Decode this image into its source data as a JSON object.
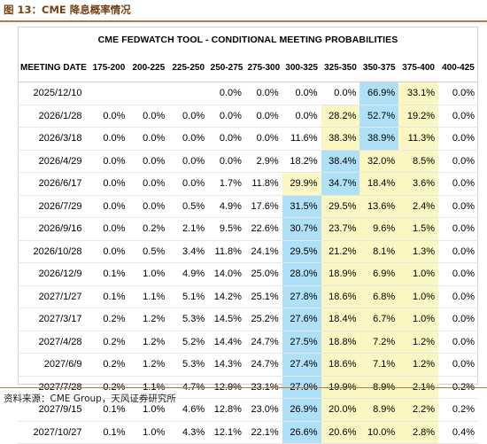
{
  "figure_title": "图 13：CME 降息概率情况",
  "table_title": "CME FEDWATCH TOOL - CONDITIONAL MEETING PROBABILITIES",
  "columns": [
    "MEETING DATE",
    "175-200",
    "200-225",
    "225-250",
    "250-275",
    "275-300",
    "300-325",
    "325-350",
    "350-375",
    "375-400",
    "400-425"
  ],
  "rows": [
    {
      "date": "2025/12/10",
      "cells": [
        "",
        "",
        "0.0%",
        "0.0%",
        "0.0%",
        "0.0%",
        "66.9%",
        "33.1%",
        "0.0%"
      ],
      "pre": [
        ""
      ]
    },
    {
      "date": "2026/1/28",
      "cells": [
        "0.0%",
        "0.0%",
        "0.0%",
        "0.0%",
        "0.0%",
        "0.0%",
        "28.2%",
        "52.7%",
        "19.2%",
        "0.0%"
      ]
    },
    {
      "date": "2026/3/18",
      "cells": [
        "0.0%",
        "0.0%",
        "0.0%",
        "0.0%",
        "0.0%",
        "11.6%",
        "38.3%",
        "38.9%",
        "11.3%",
        "0.0%"
      ]
    },
    {
      "date": "2026/4/29",
      "cells": [
        "0.0%",
        "0.0%",
        "0.0%",
        "0.0%",
        "2.9%",
        "18.2%",
        "38.4%",
        "32.0%",
        "8.5%",
        "0.0%"
      ]
    },
    {
      "date": "2026/6/17",
      "cells": [
        "0.0%",
        "0.0%",
        "0.0%",
        "1.7%",
        "11.8%",
        "29.9%",
        "34.7%",
        "18.4%",
        "3.6%",
        "0.0%"
      ]
    },
    {
      "date": "2026/7/29",
      "cells": [
        "0.0%",
        "0.0%",
        "0.5%",
        "4.9%",
        "17.6%",
        "31.5%",
        "29.5%",
        "13.6%",
        "2.4%",
        "0.0%"
      ]
    },
    {
      "date": "2026/9/16",
      "cells": [
        "0.0%",
        "0.2%",
        "2.1%",
        "9.5%",
        "22.6%",
        "30.7%",
        "23.7%",
        "9.6%",
        "1.5%",
        "0.0%"
      ]
    },
    {
      "date": "2026/10/28",
      "cells": [
        "0.0%",
        "0.5%",
        "3.4%",
        "11.8%",
        "24.1%",
        "29.5%",
        "21.2%",
        "8.1%",
        "1.3%",
        "0.0%"
      ]
    },
    {
      "date": "2026/12/9",
      "cells": [
        "0.1%",
        "1.0%",
        "4.9%",
        "14.0%",
        "25.0%",
        "28.0%",
        "18.9%",
        "6.9%",
        "1.0%",
        "0.0%"
      ]
    },
    {
      "date": "2027/1/27",
      "cells": [
        "0.1%",
        "1.1%",
        "5.1%",
        "14.2%",
        "25.1%",
        "27.8%",
        "18.6%",
        "6.8%",
        "1.0%",
        "0.0%"
      ]
    },
    {
      "date": "2027/3/17",
      "cells": [
        "0.2%",
        "1.2%",
        "5.3%",
        "14.5%",
        "25.2%",
        "27.6%",
        "18.4%",
        "6.7%",
        "1.0%",
        "0.0%"
      ]
    },
    {
      "date": "2027/4/28",
      "cells": [
        "0.2%",
        "1.2%",
        "5.2%",
        "14.4%",
        "24.7%",
        "27.5%",
        "18.8%",
        "7.2%",
        "1.2%",
        "0.0%"
      ]
    },
    {
      "date": "2027/6/9",
      "cells": [
        "0.2%",
        "1.2%",
        "5.3%",
        "14.3%",
        "24.7%",
        "27.4%",
        "18.6%",
        "7.1%",
        "1.2%",
        "0.0%"
      ]
    },
    {
      "date": "2027/7/28",
      "cells": [
        "0.2%",
        "1.1%",
        "4.7%",
        "12.9%",
        "23.1%",
        "27.0%",
        "19.9%",
        "8.9%",
        "2.1%",
        "0.2%"
      ]
    },
    {
      "date": "2027/9/15",
      "cells": [
        "0.1%",
        "1.0%",
        "4.6%",
        "12.8%",
        "23.0%",
        "26.9%",
        "20.0%",
        "8.9%",
        "2.2%",
        "0.2%"
      ]
    },
    {
      "date": "2027/10/27",
      "cells": [
        "0.1%",
        "1.0%",
        "4.3%",
        "12.1%",
        "22.1%",
        "26.6%",
        "20.6%",
        "10.0%",
        "2.8%",
        "0.4%"
      ]
    }
  ],
  "highlights": {
    "blue_color": "#aee0f7",
    "yellow_color": "#fbf7c2",
    "blue": [
      [
        0,
        7
      ],
      [
        1,
        7
      ],
      [
        2,
        7
      ],
      [
        3,
        6
      ],
      [
        4,
        6
      ],
      [
        5,
        5
      ],
      [
        6,
        5
      ],
      [
        7,
        5
      ],
      [
        8,
        5
      ],
      [
        9,
        5
      ],
      [
        10,
        5
      ],
      [
        11,
        5
      ],
      [
        12,
        5
      ],
      [
        13,
        5
      ],
      [
        14,
        5
      ],
      [
        15,
        5
      ]
    ],
    "yellow": [
      [
        0,
        8
      ],
      [
        1,
        6
      ],
      [
        1,
        8
      ],
      [
        2,
        6
      ],
      [
        2,
        8
      ],
      [
        3,
        7
      ],
      [
        3,
        8
      ],
      [
        4,
        5
      ],
      [
        4,
        7
      ],
      [
        4,
        8
      ],
      [
        5,
        6
      ],
      [
        5,
        7
      ],
      [
        5,
        8
      ],
      [
        6,
        6
      ],
      [
        6,
        7
      ],
      [
        6,
        8
      ],
      [
        7,
        6
      ],
      [
        7,
        7
      ],
      [
        7,
        8
      ],
      [
        8,
        6
      ],
      [
        8,
        7
      ],
      [
        8,
        8
      ],
      [
        9,
        6
      ],
      [
        9,
        7
      ],
      [
        9,
        8
      ],
      [
        10,
        6
      ],
      [
        10,
        7
      ],
      [
        10,
        8
      ],
      [
        11,
        6
      ],
      [
        11,
        7
      ],
      [
        11,
        8
      ],
      [
        12,
        6
      ],
      [
        12,
        7
      ],
      [
        12,
        8
      ],
      [
        13,
        6
      ],
      [
        13,
        7
      ],
      [
        13,
        8
      ],
      [
        14,
        6
      ],
      [
        14,
        7
      ],
      [
        14,
        8
      ],
      [
        15,
        6
      ],
      [
        15,
        7
      ],
      [
        15,
        8
      ]
    ]
  },
  "source": "资料来源：CME Group，天风证券研究所"
}
